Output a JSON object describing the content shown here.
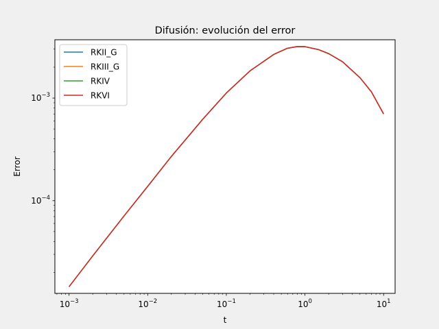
{
  "chart_data": {
    "type": "line",
    "title": "Difusión: evolución del error",
    "xlabel": "t",
    "ylabel": "Error",
    "xscale": "log",
    "yscale": "log",
    "xlim": [
      0.00066,
      14.0
    ],
    "ylim": [
      1.25e-05,
      0.0037
    ],
    "xticks": [
      {
        "value": 0.001,
        "base": "10",
        "exp": "−3"
      },
      {
        "value": 0.01,
        "base": "10",
        "exp": "−2"
      },
      {
        "value": 0.1,
        "base": "10",
        "exp": "−1"
      },
      {
        "value": 1,
        "base": "10",
        "exp": "0"
      },
      {
        "value": 10,
        "base": "10",
        "exp": "1"
      }
    ],
    "yticks": [
      {
        "value": 0.0001,
        "base": "10",
        "exp": "−4"
      },
      {
        "value": 0.001,
        "base": "10",
        "exp": "−3"
      }
    ],
    "grid": false,
    "legend_position": "top-left",
    "x": [
      0.001,
      0.002,
      0.005,
      0.01,
      0.02,
      0.05,
      0.1,
      0.2,
      0.4,
      0.6,
      0.8,
      1.0,
      1.5,
      2,
      3,
      5,
      7,
      10
    ],
    "series": [
      {
        "name": "RKII_G",
        "color": "#1f77b4",
        "values": [
          1.45e-05,
          2.9e-05,
          7.1e-05,
          0.000138,
          0.00027,
          0.00062,
          0.00112,
          0.00184,
          0.00266,
          0.00306,
          0.00318,
          0.00317,
          0.00296,
          0.00271,
          0.00226,
          0.00158,
          0.00115,
          0.0007
        ]
      },
      {
        "name": "RKIII_G",
        "color": "#ff7f0e",
        "values": [
          1.45e-05,
          2.9e-05,
          7.1e-05,
          0.000138,
          0.00027,
          0.00062,
          0.00112,
          0.00184,
          0.00266,
          0.00306,
          0.00318,
          0.00317,
          0.00296,
          0.00271,
          0.00226,
          0.00158,
          0.00115,
          0.0007
        ]
      },
      {
        "name": "RKIV",
        "color": "#2ca02c",
        "values": [
          1.45e-05,
          2.9e-05,
          7.1e-05,
          0.000138,
          0.00027,
          0.00062,
          0.00112,
          0.00184,
          0.00266,
          0.00306,
          0.00318,
          0.00317,
          0.00296,
          0.00271,
          0.00226,
          0.00158,
          0.00115,
          0.0007
        ]
      },
      {
        "name": "RKVI",
        "color": "#d62728",
        "values": [
          1.45e-05,
          2.9e-05,
          7.1e-05,
          0.000138,
          0.00027,
          0.00062,
          0.00112,
          0.00184,
          0.00266,
          0.00306,
          0.00318,
          0.00317,
          0.00296,
          0.00271,
          0.00226,
          0.00158,
          0.00115,
          0.0007
        ]
      }
    ]
  }
}
